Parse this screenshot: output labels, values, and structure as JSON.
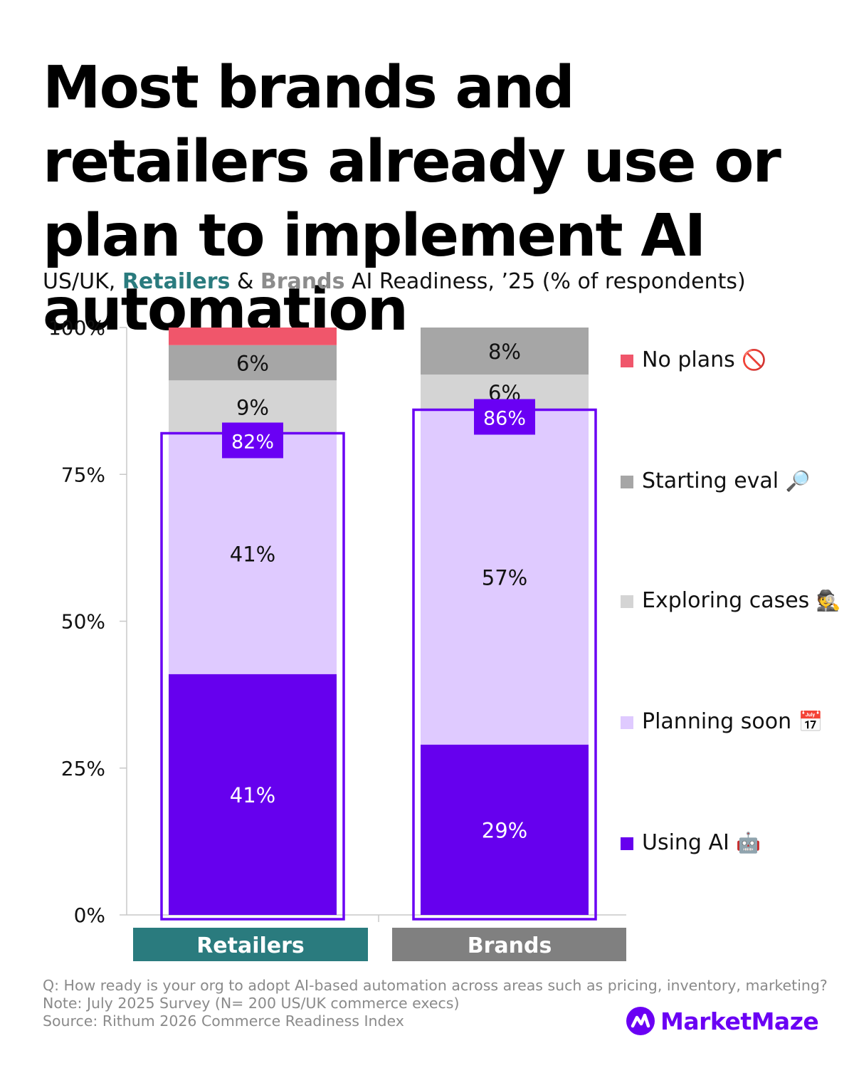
{
  "title": "Most brands and retailers already use or plan to implement AI automation",
  "subtitle": {
    "prefix": "US/UK, ",
    "retailers": "Retailers",
    "amp": " & ",
    "brands": "Brands",
    "suffix": " AI Readiness, ’25 (% of respondents)"
  },
  "chart_data": {
    "type": "bar",
    "stacked": true,
    "categories": [
      "Retailers",
      "Brands"
    ],
    "category_colors": [
      "#2a7b7e",
      "#808080"
    ],
    "ylim": [
      0,
      100
    ],
    "yticks": [
      "0%",
      "25%",
      "50%",
      "75%",
      "100%"
    ],
    "series": [
      {
        "name": "Using AI",
        "color": "#6600ee",
        "values": [
          41,
          29
        ],
        "labels": [
          "41%",
          "29%"
        ],
        "icon": "robot-icon"
      },
      {
        "name": "Planning soon",
        "color": "#dfcaff",
        "values": [
          41,
          57
        ],
        "labels": [
          "41%",
          "57%"
        ],
        "icon": "calendar-icon"
      },
      {
        "name": "Exploring cases",
        "color": "#d4d4d4",
        "values": [
          9,
          6
        ],
        "labels": [
          "9%",
          "6%"
        ],
        "icon": "detective-icon"
      },
      {
        "name": "Starting eval",
        "color": "#a6a6a6",
        "values": [
          6,
          8
        ],
        "labels": [
          "6%",
          "8%"
        ],
        "icon": "magnifier-icon"
      },
      {
        "name": "No plans",
        "color": "#f0566b",
        "values": [
          3,
          0
        ],
        "labels": [
          "",
          ""
        ],
        "icon": "prohibited-icon"
      }
    ],
    "highlight": {
      "color": "#6a00f4",
      "values": [
        82,
        86
      ],
      "labels": [
        "82%",
        "86%"
      ]
    },
    "legend_position": "right"
  },
  "legend": [
    {
      "label": "No plans",
      "emoji": "🚫",
      "color": "#f0566b"
    },
    {
      "label": "Starting eval",
      "emoji": "🔎",
      "color": "#a6a6a6"
    },
    {
      "label": "Exploring cases",
      "emoji": "🕵️",
      "color": "#d4d4d4"
    },
    {
      "label": "Planning soon",
      "emoji": "📅",
      "color": "#dfcaff"
    },
    {
      "label": "Using AI",
      "emoji": "🤖",
      "color": "#6600ee"
    }
  ],
  "footnotes": {
    "question": "Q: How ready is your org to adopt AI-based automation across areas such as pricing, inventory, marketing?",
    "note": "Note: July 2025 Survey (N= 200 US/UK commerce execs)",
    "source": "Source: Rithum 2026 Commerce Readiness Index"
  },
  "brand": {
    "name": "MarketMaze",
    "color": "#6a00f4"
  }
}
